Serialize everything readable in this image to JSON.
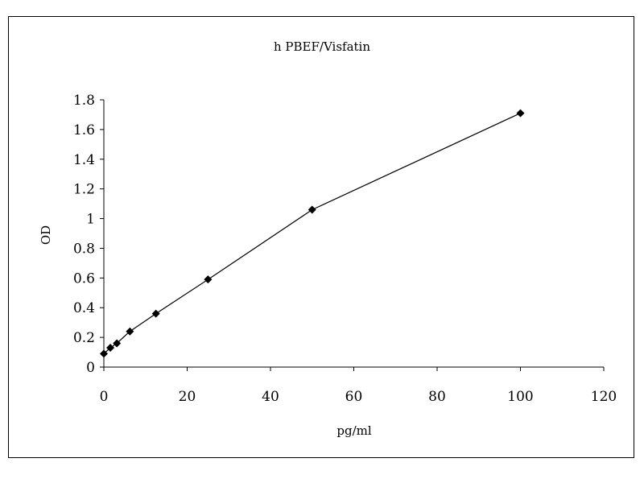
{
  "chart_data": {
    "type": "line",
    "title": "h PBEF/Visfatin",
    "xlabel": "pg/ml",
    "ylabel": "OD",
    "xlim": [
      0,
      120
    ],
    "ylim": [
      0,
      1.8
    ],
    "x_ticks": [
      0,
      20,
      40,
      60,
      80,
      100,
      120
    ],
    "y_ticks": [
      0,
      0.2,
      0.4,
      0.6,
      0.8,
      1,
      1.2,
      1.4,
      1.6,
      1.8
    ],
    "x_tick_labels": [
      "0",
      "20",
      "40",
      "60",
      "80",
      "100",
      "120"
    ],
    "y_tick_labels": [
      "0",
      "0.2",
      "0.4",
      "0.6",
      "0.8",
      "1",
      "1.2",
      "1.4",
      "1.6",
      "1.8"
    ],
    "grid": false,
    "legend": "none",
    "marker": "diamond",
    "line_color": "#000000",
    "series": [
      {
        "x": [
          0,
          1.56,
          3.12,
          6.25,
          12.5,
          25,
          50,
          100
        ],
        "y": [
          0.09,
          0.13,
          0.16,
          0.24,
          0.36,
          0.59,
          1.06,
          1.71
        ]
      }
    ]
  }
}
